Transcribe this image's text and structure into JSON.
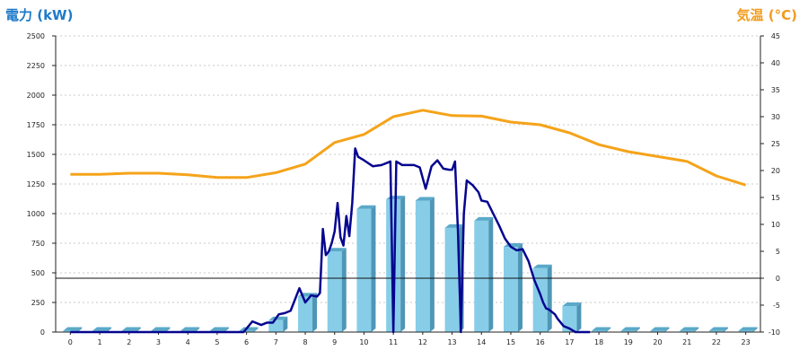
{
  "chart_data": {
    "type": "bar",
    "left_axis_title": "電力 (kW)",
    "right_axis_title": "気温 (°C)",
    "categories": [
      "0",
      "1",
      "2",
      "3",
      "4",
      "5",
      "6",
      "7",
      "8",
      "9",
      "10",
      "11",
      "12",
      "13",
      "14",
      "15",
      "16",
      "17",
      "18",
      "19",
      "20",
      "21",
      "22",
      "23"
    ],
    "y_left": {
      "min": 0,
      "max": 2500,
      "ticks": [
        "0",
        "250",
        "500",
        "750",
        "1000",
        "1250",
        "1500",
        "1750",
        "2000",
        "2250",
        "2500"
      ]
    },
    "y_right": {
      "min": -10,
      "max": 45,
      "ticks": [
        "-10",
        "-5",
        "0",
        "5",
        "10",
        "15",
        "20",
        "25",
        "30",
        "35",
        "40",
        "45"
      ]
    },
    "grid": true,
    "zero_line_right_axis": 0,
    "series": [
      {
        "kind": "bar",
        "axis": "left",
        "color": "#87cde8",
        "values": [
          0,
          0,
          0,
          0,
          0,
          0,
          0,
          100,
          300,
          680,
          1040,
          1120,
          1110,
          880,
          940,
          720,
          540,
          220,
          0,
          0,
          0,
          0,
          0,
          0
        ]
      },
      {
        "kind": "line",
        "axis": "right",
        "color": "#f5a31a",
        "values": [
          19.3,
          19.3,
          19.5,
          19.5,
          19.2,
          18.7,
          18.7,
          19.6,
          21.2,
          25.2,
          26.7,
          30,
          31.2,
          30.2,
          30.1,
          29,
          28.5,
          27,
          24.8,
          23.5,
          22.6,
          21.7,
          19,
          17.3
        ]
      },
      {
        "kind": "line",
        "axis": "left",
        "color": "#06058f",
        "x": [
          0,
          1,
          2,
          3,
          4,
          5,
          5.9,
          6.2,
          6.5,
          6.7,
          6.9,
          7.1,
          7.3,
          7.5,
          7.8,
          8.0,
          8.2,
          8.4,
          8.5,
          8.6,
          8.7,
          8.8,
          8.9,
          9.0,
          9.1,
          9.2,
          9.3,
          9.4,
          9.5,
          9.6,
          9.7,
          9.8,
          10.0,
          10.3,
          10.6,
          10.9,
          11.0,
          11.1,
          11.3,
          11.7,
          11.9,
          12.1,
          12.3,
          12.5,
          12.7,
          12.9,
          13.0,
          13.1,
          13.2,
          13.3,
          13.4,
          13.5,
          13.7,
          13.9,
          14.0,
          14.2,
          14.4,
          14.6,
          14.8,
          15.0,
          15.2,
          15.4,
          15.6,
          15.8,
          16.0,
          16.1,
          16.2,
          16.3,
          16.5,
          16.6,
          16.8,
          17.0,
          17.2,
          17.5,
          17.7
        ],
        "values": [
          0,
          0,
          0,
          0,
          0,
          0,
          0,
          90,
          60,
          80,
          80,
          150,
          160,
          180,
          370,
          250,
          310,
          300,
          330,
          870,
          650,
          680,
          750,
          850,
          1090,
          800,
          730,
          980,
          810,
          1090,
          1550,
          1480,
          1450,
          1400,
          1410,
          1440,
          0,
          1440,
          1410,
          1410,
          1390,
          1210,
          1400,
          1450,
          1380,
          1370,
          1370,
          1440,
          850,
          0,
          1000,
          1280,
          1240,
          1180,
          1110,
          1100,
          1000,
          900,
          790,
          720,
          690,
          700,
          600,
          440,
          320,
          250,
          200,
          190,
          150,
          110,
          50,
          30,
          0,
          0,
          0
        ]
      }
    ]
  }
}
